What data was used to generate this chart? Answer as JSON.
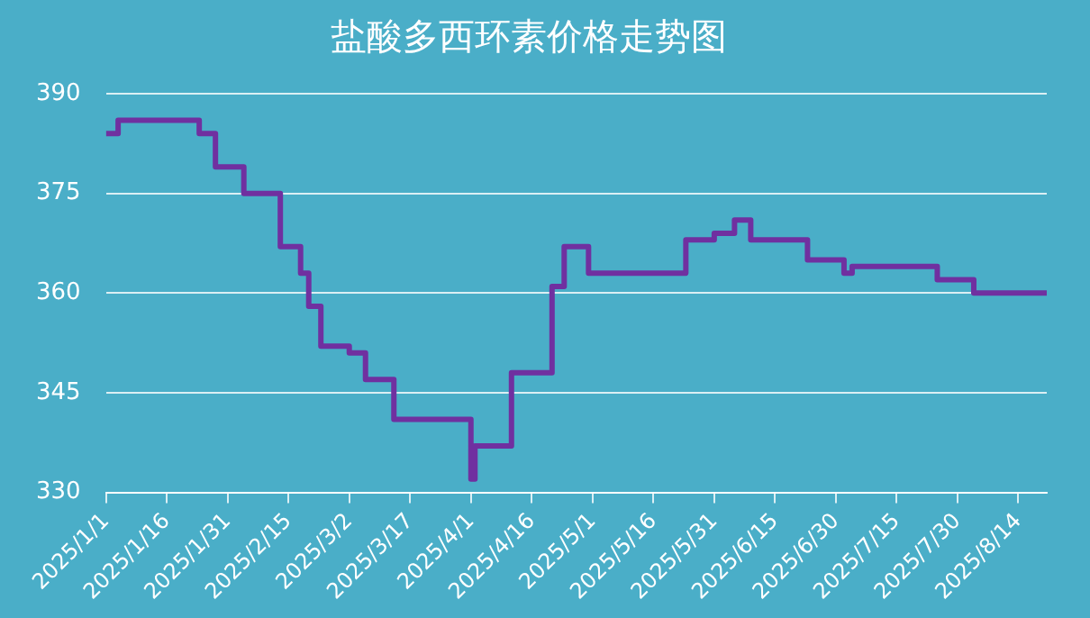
{
  "chart_data": {
    "type": "step",
    "title": "盐酸多西环素价格走势图",
    "x": [
      "2025-01-01",
      "2025-01-04",
      "2025-01-24",
      "2025-01-28",
      "2025-02-04",
      "2025-02-13",
      "2025-02-18",
      "2025-02-20",
      "2025-02-23",
      "2025-03-02",
      "2025-03-06",
      "2025-03-13",
      "2025-04-01",
      "2025-04-02",
      "2025-04-11",
      "2025-04-21",
      "2025-04-24",
      "2025-04-30",
      "2025-05-24",
      "2025-05-31",
      "2025-06-05",
      "2025-06-09",
      "2025-06-23",
      "2025-07-02",
      "2025-07-04",
      "2025-07-25",
      "2025-08-03",
      "2025-08-21"
    ],
    "series": [
      {
        "color": "#7030a0",
        "values": [
          384,
          386,
          384,
          379,
          375,
          367,
          363,
          358,
          352,
          351,
          347,
          341,
          332,
          337,
          348,
          361,
          367,
          363,
          368,
          369,
          371,
          368,
          365,
          363,
          364,
          362,
          360,
          360
        ]
      }
    ],
    "xlim": [
      "2025-01-01",
      "2025-08-21"
    ],
    "xticks": [
      {
        "value": "2025-01-01",
        "label": "2025/1/1"
      },
      {
        "value": "2025-01-16",
        "label": "2025/1/16"
      },
      {
        "value": "2025-01-31",
        "label": "2025/1/31"
      },
      {
        "value": "2025-02-15",
        "label": "2025/2/15"
      },
      {
        "value": "2025-03-02",
        "label": "2025/3/2"
      },
      {
        "value": "2025-03-17",
        "label": "2025/3/17"
      },
      {
        "value": "2025-04-01",
        "label": "2025/4/1"
      },
      {
        "value": "2025-04-16",
        "label": "2025/4/16"
      },
      {
        "value": "2025-05-01",
        "label": "2025/5/1"
      },
      {
        "value": "2025-05-16",
        "label": "2025/5/16"
      },
      {
        "value": "2025-05-31",
        "label": "2025/5/31"
      },
      {
        "value": "2025-06-15",
        "label": "2025/6/15"
      },
      {
        "value": "2025-06-30",
        "label": "2025/6/30"
      },
      {
        "value": "2025-07-15",
        "label": "2025/7/15"
      },
      {
        "value": "2025-07-30",
        "label": "2025/7/30"
      },
      {
        "value": "2025-08-14",
        "label": "2025/8/14"
      }
    ],
    "ylim": [
      330,
      390
    ],
    "yticks": [
      330,
      345,
      360,
      375,
      390
    ],
    "grid": "y",
    "legend": false,
    "marker": "none",
    "line_style": "solid"
  }
}
